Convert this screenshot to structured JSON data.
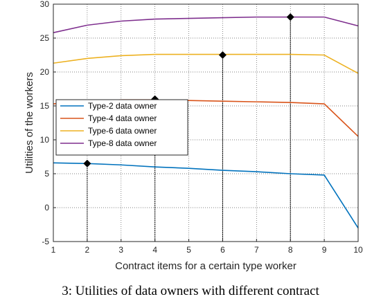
{
  "caption": "3: Utilities of data owners with different contract",
  "chart_data": {
    "type": "line",
    "xlabel": "Contract items for a certain type worker",
    "ylabel": "Utilities of the workers",
    "xlim": [
      1,
      10
    ],
    "ylim": [
      -5,
      30
    ],
    "xticks": [
      "1",
      "2",
      "3",
      "4",
      "5",
      "6",
      "7",
      "8",
      "9",
      "10"
    ],
    "yticks": [
      "-5",
      "0",
      "5",
      "10",
      "15",
      "20",
      "25",
      "30"
    ],
    "grid": true,
    "legend_position": "center-left",
    "x": [
      1,
      2,
      3,
      4,
      5,
      6,
      7,
      8,
      9,
      10
    ],
    "series": [
      {
        "name": "Type-2 data owner",
        "color": "#0072BD",
        "values": [
          6.6,
          6.5,
          6.3,
          6.0,
          5.8,
          5.5,
          5.3,
          5.0,
          4.8,
          -3.0
        ]
      },
      {
        "name": "Type-4 data owner",
        "color": "#D95319",
        "values": [
          15.3,
          15.7,
          15.9,
          15.9,
          15.8,
          15.7,
          15.6,
          15.5,
          15.3,
          10.5
        ]
      },
      {
        "name": "Type-6 data owner",
        "color": "#EDB120",
        "values": [
          21.3,
          22.0,
          22.4,
          22.6,
          22.6,
          22.6,
          22.6,
          22.6,
          22.5,
          19.8
        ]
      },
      {
        "name": "Type-8 data owner",
        "color": "#7E2F8E",
        "values": [
          25.8,
          26.9,
          27.5,
          27.8,
          27.9,
          28.0,
          28.1,
          28.1,
          28.1,
          26.8
        ]
      }
    ],
    "markers": [
      {
        "x": 2,
        "y": 6.5
      },
      {
        "x": 4,
        "y": 16.0
      },
      {
        "x": 6,
        "y": 22.5
      },
      {
        "x": 8,
        "y": 28.1
      }
    ]
  }
}
